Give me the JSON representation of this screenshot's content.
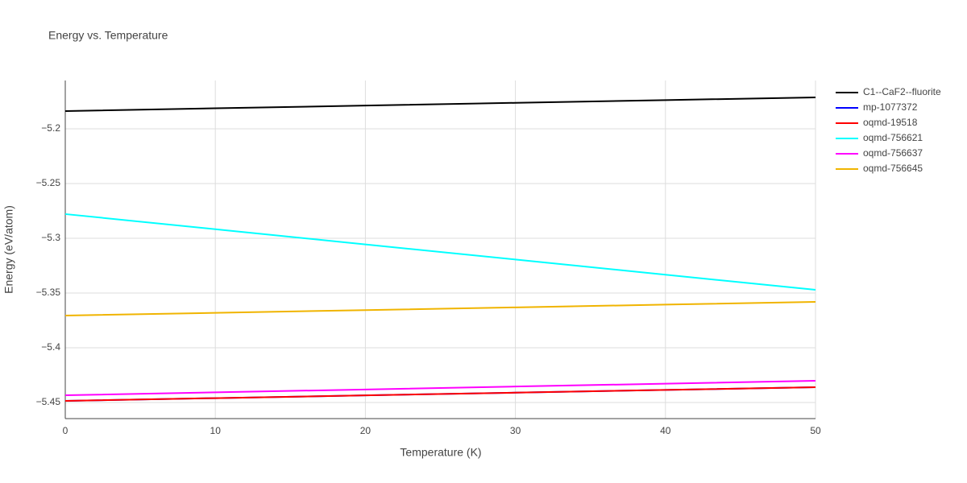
{
  "chart_data": {
    "type": "line",
    "title": "Energy vs. Temperature",
    "x_label": "Temperature (K)",
    "y_label": "Energy (eV/atom)",
    "x": [
      0,
      10,
      20,
      30,
      40,
      50
    ],
    "series": [
      {
        "name": "C1--CaF2--fluorite",
        "color": "#000000",
        "values": [
          -5.1838,
          -5.1813,
          -5.1788,
          -5.1763,
          -5.1738,
          -5.1713
        ]
      },
      {
        "name": "mp-1077372",
        "color": "#0000ff",
        "values": [
          -5.4485,
          -5.446,
          -5.4435,
          -5.441,
          -5.4385,
          -5.436
        ]
      },
      {
        "name": "oqmd-19518",
        "color": "#ff0000",
        "values": [
          -5.4485,
          -5.446,
          -5.4435,
          -5.441,
          -5.4385,
          -5.436
        ]
      },
      {
        "name": "oqmd-756621",
        "color": "#00ffff",
        "values": [
          -5.2779,
          -5.2917,
          -5.3056,
          -5.3194,
          -5.3333,
          -5.3471
        ]
      },
      {
        "name": "oqmd-756637",
        "color": "#ff00ff",
        "values": [
          -5.4434,
          -5.4407,
          -5.4381,
          -5.4354,
          -5.4328,
          -5.4301
        ]
      },
      {
        "name": "oqmd-756645",
        "color": "#f0b400",
        "values": [
          -5.3706,
          -5.3681,
          -5.3656,
          -5.3631,
          -5.3606,
          -5.3581
        ]
      }
    ],
    "xlim": [
      0,
      50
    ],
    "xticks": [
      0,
      10,
      20,
      30,
      40,
      50
    ],
    "ylim": [
      -5.4647,
      -5.1559
    ],
    "yticks": [
      {
        "value": -5.45,
        "label": "−5.45"
      },
      {
        "value": -5.4,
        "label": "−5.4"
      },
      {
        "value": -5.35,
        "label": "−5.35"
      },
      {
        "value": -5.3,
        "label": "−5.3"
      },
      {
        "value": -5.25,
        "label": "−5.25"
      },
      {
        "value": -5.2,
        "label": "−5.2"
      }
    ],
    "grid": true
  }
}
